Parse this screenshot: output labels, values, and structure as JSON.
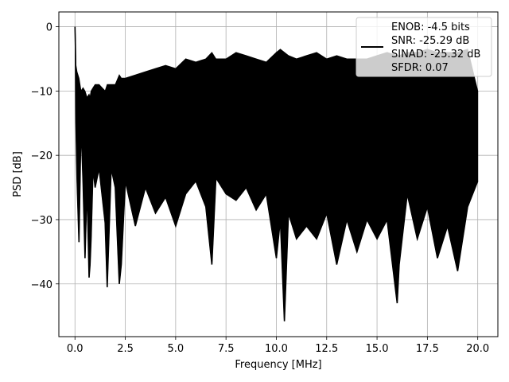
{
  "chart_data": {
    "type": "line",
    "xlabel": "Frequency [MHz]",
    "ylabel": "PSD [dB]",
    "xlim": [
      -0.8,
      21.0
    ],
    "ylim": [
      -48.2,
      2.3
    ],
    "xticks": [
      0.0,
      2.5,
      5.0,
      7.5,
      10.0,
      12.5,
      15.0,
      17.5,
      20.0
    ],
    "xtick_labels": [
      "0.0",
      "2.5",
      "5.0",
      "7.5",
      "10.0",
      "12.5",
      "15.0",
      "17.5",
      "20.0"
    ],
    "yticks": [
      0,
      -10,
      -20,
      -30,
      -40
    ],
    "ytick_labels": [
      "0",
      "−10",
      "−20",
      "−30",
      "−40"
    ],
    "grid": true,
    "legend_position": "top-right",
    "series": [
      {
        "color": "#000000",
        "legend_lines": [
          "ENOB: -4.5 bits",
          "SNR: -25.29 dB",
          "SINAD: -25.32 dB",
          "SFDR: 0.07"
        ],
        "x": [
          0.0,
          0.02,
          0.05,
          0.1,
          0.2,
          0.3,
          0.4,
          0.5,
          0.6,
          0.7,
          0.75,
          0.8,
          0.9,
          1.0,
          1.2,
          1.5,
          1.6,
          1.8,
          2.0,
          2.2,
          2.3,
          2.5,
          3.0,
          3.5,
          4.0,
          4.5,
          5.0,
          5.5,
          6.0,
          6.5,
          6.8,
          7.0,
          7.5,
          8.0,
          8.5,
          9.0,
          9.5,
          10.0,
          10.2,
          10.4,
          10.6,
          11.0,
          11.5,
          12.0,
          12.5,
          13.0,
          13.5,
          14.0,
          14.5,
          15.0,
          15.5,
          16.0,
          16.1,
          16.5,
          17.0,
          17.5,
          18.0,
          18.5,
          19.0,
          19.5,
          20.0
        ],
        "y": [
          0.0,
          -3.0,
          -15.0,
          -23.5,
          -33.5,
          -15.0,
          -24.0,
          -36.0,
          -24.5,
          -39.0,
          -37.0,
          -33.0,
          -22.0,
          -25.0,
          -22.0,
          -30.5,
          -40.5,
          -22.0,
          -25.0,
          -40.0,
          -37.0,
          -24.0,
          -31.0,
          -25.0,
          -29.0,
          -26.5,
          -31.0,
          -26.0,
          -24.0,
          -28.0,
          -37.0,
          -23.5,
          -26.0,
          -27.0,
          -25.0,
          -28.5,
          -26.0,
          -36.0,
          -30.0,
          -45.8,
          -29.0,
          -33.0,
          -31.0,
          -33.0,
          -29.0,
          -37.0,
          -30.0,
          -35.0,
          -30.0,
          -33.0,
          -30.0,
          -43.0,
          -37.0,
          -26.0,
          -33.0,
          -28.0,
          -36.0,
          -31.0,
          -38.0,
          -28.0,
          -24.0
        ],
        "y_upper": [
          0.0,
          -2.0,
          -6.0,
          -7.0,
          -8.0,
          -10.0,
          -9.5,
          -10.0,
          -11.0,
          -10.5,
          -11.0,
          -10.0,
          -9.5,
          -9.0,
          -9.0,
          -10.0,
          -9.0,
          -9.0,
          -9.0,
          -7.5,
          -8.0,
          -8.0,
          -7.5,
          -7.0,
          -6.5,
          -6.0,
          -6.5,
          -5.0,
          -5.5,
          -5.0,
          -4.0,
          -5.0,
          -5.0,
          -4.0,
          -4.5,
          -5.0,
          -5.5,
          -4.0,
          -3.5,
          -4.0,
          -4.5,
          -5.0,
          -4.5,
          -4.0,
          -5.0,
          -4.5,
          -5.0,
          -5.0,
          -5.0,
          -4.5,
          -4.0,
          -4.5,
          -4.5,
          -4.0,
          -4.0,
          -3.5,
          -4.0,
          -4.0,
          -4.0,
          -3.5,
          -10.0
        ]
      }
    ]
  }
}
